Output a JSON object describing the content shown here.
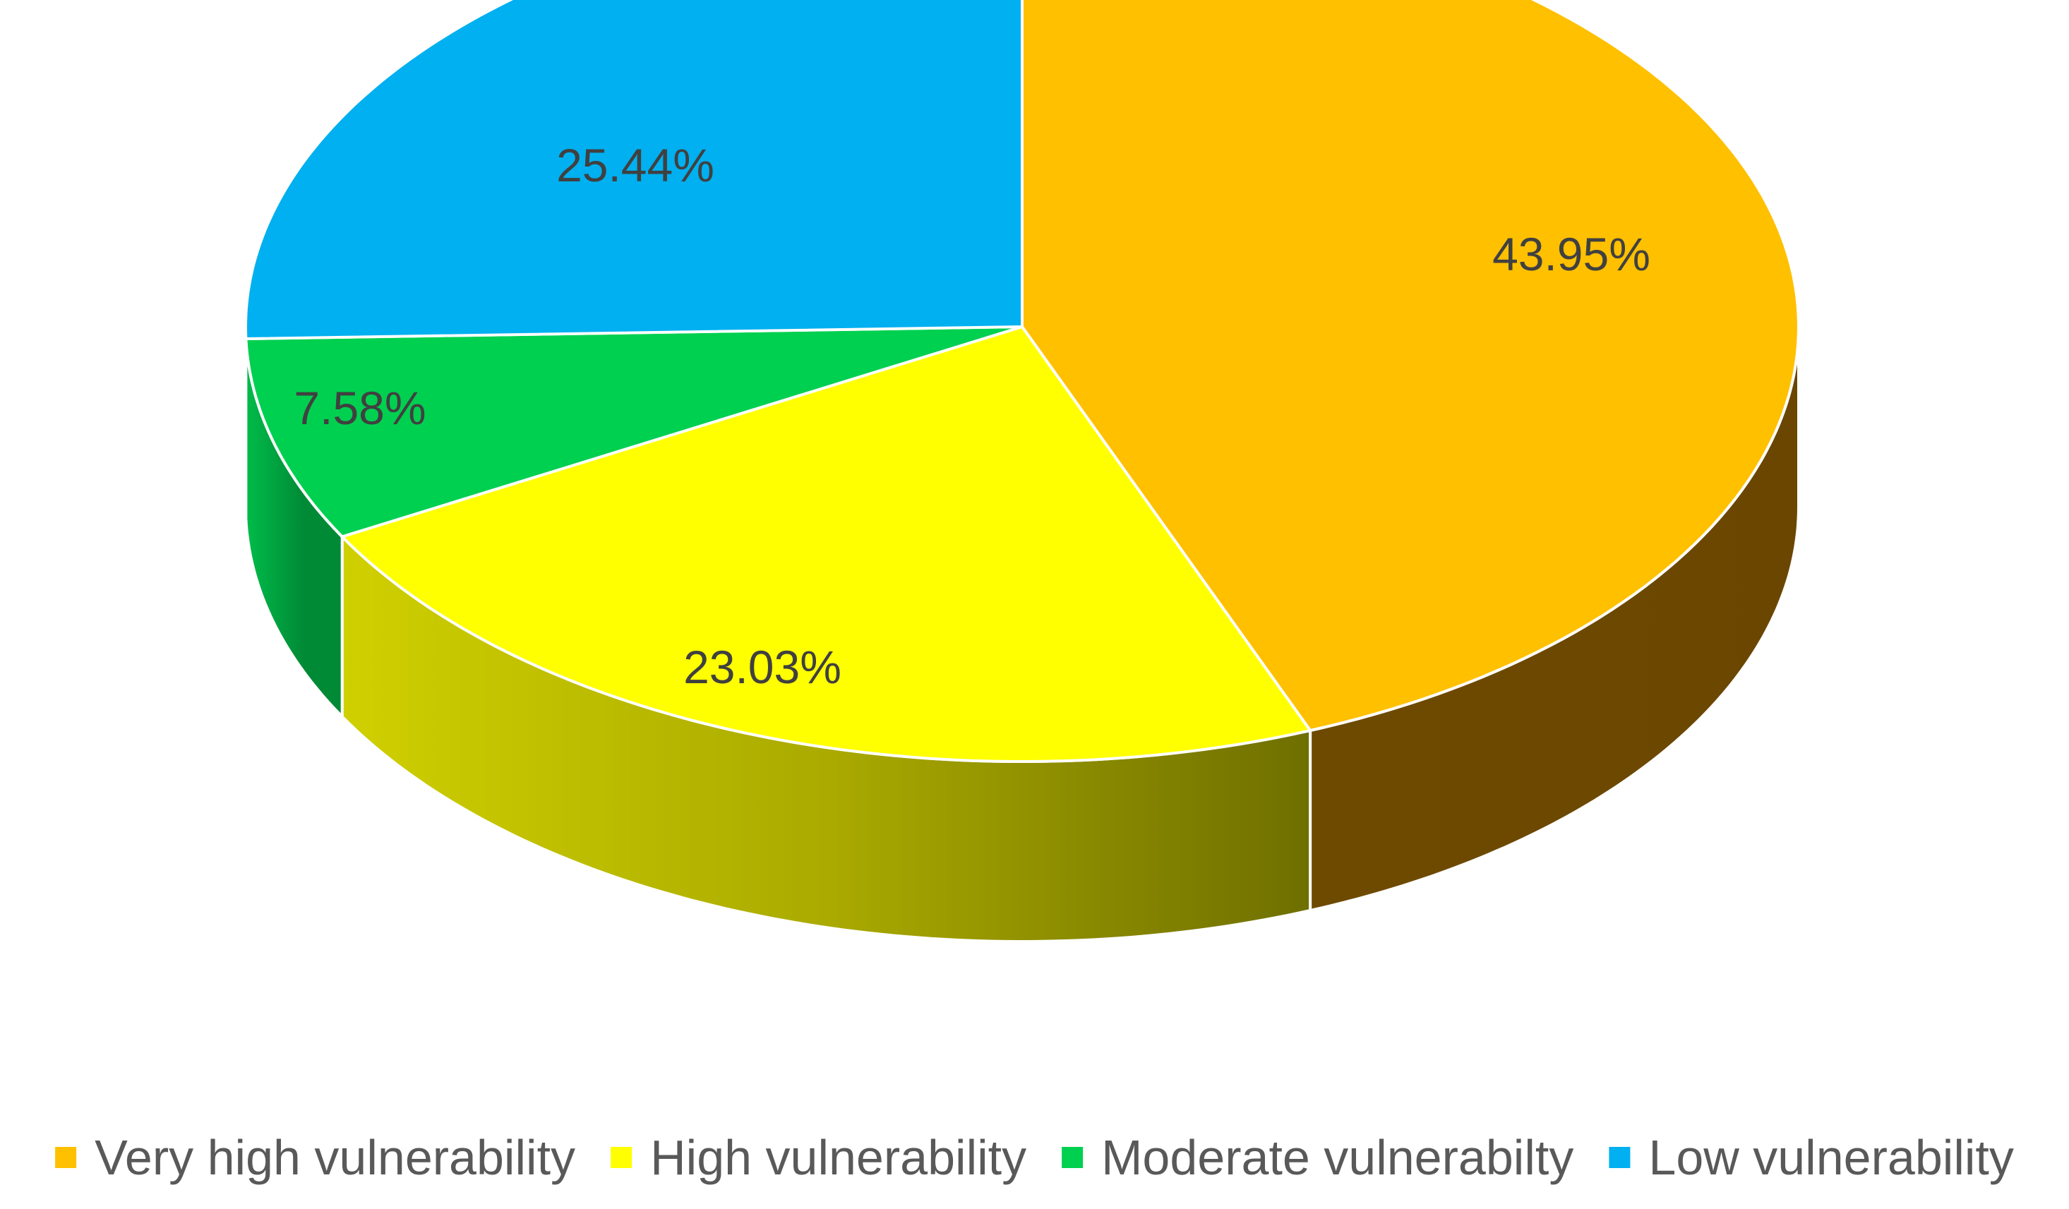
{
  "chart_data": {
    "type": "pie",
    "style": "3d",
    "title": "",
    "categories": [
      "Very high vulnerability",
      "High vulnerability",
      "Moderate vulnerabilty",
      "Low vulnerability"
    ],
    "values": [
      43.95,
      23.03,
      7.58,
      25.44
    ],
    "data_labels": [
      "43.95%",
      "23.03%",
      "7.58%",
      "25.44%"
    ],
    "colors": [
      "#FFC000",
      "#FFFF00",
      "#00D050",
      "#00B0F0"
    ],
    "legend_position": "bottom"
  }
}
